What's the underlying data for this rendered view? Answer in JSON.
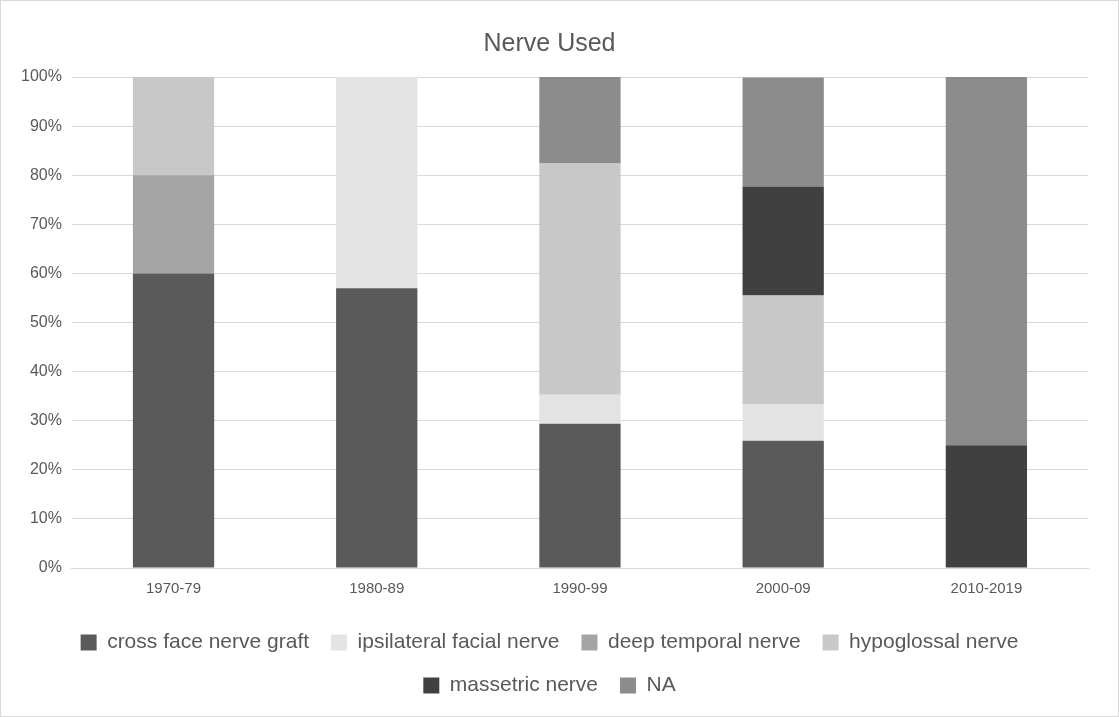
{
  "chart_data": {
    "type": "bar",
    "title": "Nerve Used",
    "stacked": true,
    "categories": [
      "1970-79",
      "1980-89",
      "1990-99",
      "2000-09",
      "2010-2019"
    ],
    "series": [
      {
        "name": "cross face nerve graft",
        "color": "#5a5a5a",
        "values": [
          60,
          57,
          29.4,
          25.9,
          null
        ]
      },
      {
        "name": "ipsilateral facial nerve",
        "color": "#e3e3e3",
        "values": [
          null,
          43,
          5.9,
          7.4,
          null
        ]
      },
      {
        "name": "deep temporal nerve",
        "color": "#a5a5a5",
        "values": [
          20,
          null,
          null,
          null,
          null
        ]
      },
      {
        "name": "hypoglossal nerve",
        "color": "#c8c8c8",
        "values": [
          20,
          null,
          47.1,
          22.2,
          null
        ]
      },
      {
        "name": "massetric nerve",
        "color": "#404040",
        "values": [
          null,
          null,
          null,
          22.2,
          25
        ]
      },
      {
        "name": "NA",
        "color": "#8c8c8c",
        "values": [
          null,
          null,
          17.6,
          22.2,
          75
        ]
      }
    ],
    "ylim": [
      0,
      100
    ],
    "yticks": [
      {
        "value": 0,
        "label": "0%"
      },
      {
        "value": 10,
        "label": "10%"
      },
      {
        "value": 20,
        "label": "20%"
      },
      {
        "value": 30,
        "label": "30%"
      },
      {
        "value": 40,
        "label": "40%"
      },
      {
        "value": 50,
        "label": "50%"
      },
      {
        "value": 60,
        "label": "60%"
      },
      {
        "value": 70,
        "label": "70%"
      },
      {
        "value": 80,
        "label": "80%"
      },
      {
        "value": 90,
        "label": "90%"
      },
      {
        "value": 100,
        "label": "100%"
      }
    ],
    "grid": "y",
    "legend": "bottom"
  }
}
